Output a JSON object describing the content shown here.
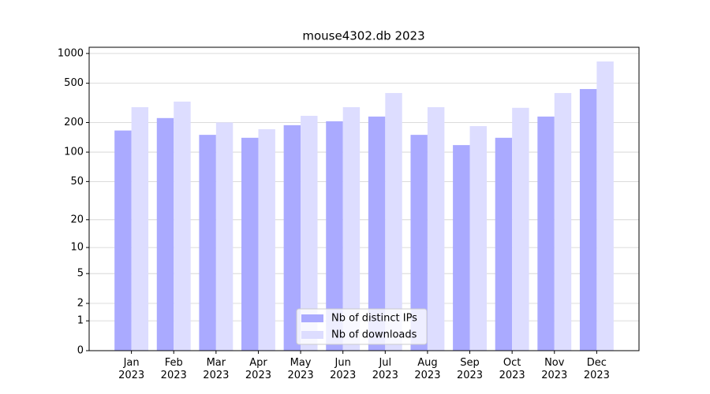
{
  "chart_data": {
    "type": "bar",
    "title": "mouse4302.db 2023",
    "categories": [
      "Jan 2023",
      "Feb 2023",
      "Mar 2023",
      "Apr 2023",
      "May 2023",
      "Jun 2023",
      "Jul 2023",
      "Aug 2023",
      "Sep 2023",
      "Oct 2023",
      "Nov 2023",
      "Dec 2023"
    ],
    "series": [
      {
        "name": "Nb of distinct IPs",
        "color": "#aaaaff",
        "values": [
          166,
          222,
          150,
          140,
          188,
          206,
          230,
          150,
          118,
          140,
          230,
          437
        ]
      },
      {
        "name": "Nb of downloads",
        "color": "#ddddff",
        "values": [
          286,
          326,
          200,
          171,
          234,
          286,
          398,
          286,
          184,
          282,
          398,
          830
        ]
      }
    ],
    "yscale": "log1p",
    "ylim": [
      0,
      1155
    ],
    "yticks": [
      0,
      1,
      2,
      5,
      10,
      20,
      50,
      100,
      200,
      500,
      1000
    ],
    "grid": true,
    "legend": "lower center"
  }
}
